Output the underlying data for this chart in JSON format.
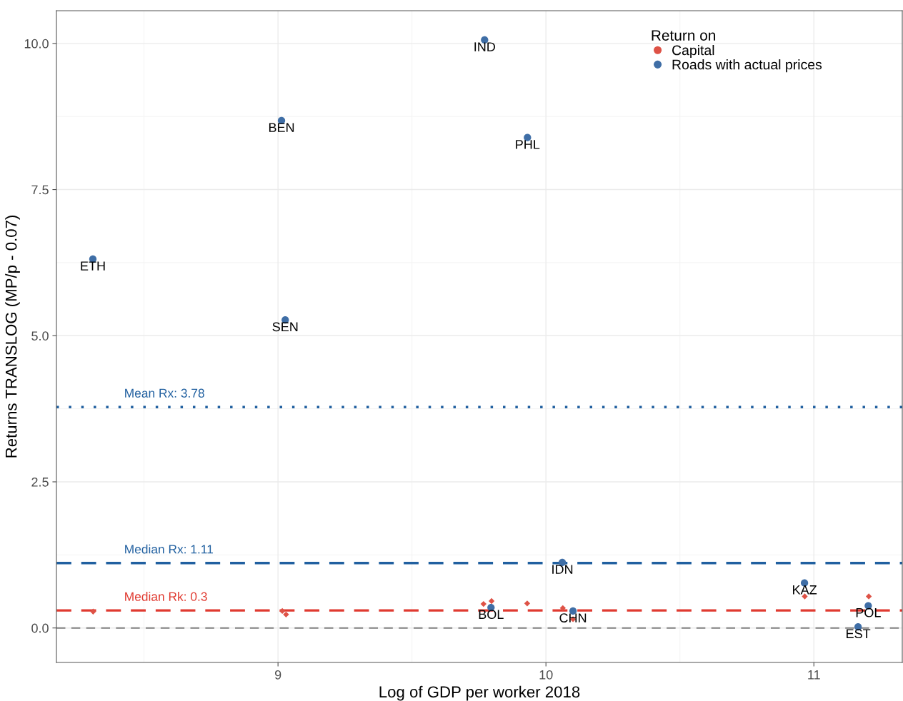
{
  "chart_data": {
    "type": "scatter",
    "xlabel": "Log of GDP per worker 2018",
    "ylabel": "Returns TRANSLOG (MP/p - 0.07)",
    "legend_title": "Return on",
    "legend": "top right",
    "grid": true,
    "xlim": [
      8.173,
      11.33
    ],
    "ylim": [
      -0.59,
      10.56
    ],
    "xticks": [
      9,
      10,
      11
    ],
    "yticks": [
      {
        "value": 0,
        "label": "0.0"
      },
      2.5,
      {
        "value": 5,
        "label": "5.0"
      },
      7.5,
      {
        "value": 10,
        "label": "10.0"
      }
    ],
    "series": [
      {
        "name": "Capital",
        "color": "#de5246",
        "marker": "diamond",
        "x": [
          8.31,
          9.016,
          9.03,
          9.767,
          9.797,
          9.93,
          10.063,
          10.101,
          10.966,
          11.205
        ],
        "values": [
          0.28,
          0.29,
          0.23,
          0.41,
          0.46,
          0.42,
          0.34,
          0.15,
          0.54,
          0.54
        ]
      },
      {
        "name": "Roads with actual prices",
        "color": "#3f6ea6",
        "marker": "circle",
        "x": [
          8.309,
          9.013,
          9.027,
          9.771,
          9.931,
          10.061,
          9.795,
          10.101,
          10.965,
          11.203,
          11.165
        ],
        "values": [
          6.31,
          8.68,
          5.27,
          10.06,
          8.39,
          1.12,
          0.35,
          0.29,
          0.77,
          0.38,
          0.02
        ]
      }
    ],
    "ref_lines": [
      {
        "axis": "y",
        "value": 3.78,
        "label": "Mean Rx: 3.78",
        "color": "#2160a0",
        "line_style": "dotted"
      },
      {
        "axis": "y",
        "value": 1.11,
        "label": "Median Rx: 1.11",
        "color": "#2160a0",
        "line_style": "dashed"
      },
      {
        "axis": "y",
        "value": 0.3,
        "label": "Median Rk: 0.3",
        "color": "#e03a30",
        "line_style": "dashed"
      },
      {
        "axis": "y",
        "value": 0,
        "label": null,
        "color": "#808080",
        "line_style": "dashed"
      }
    ],
    "annotations": [
      {
        "text": "ETH",
        "x": 8.309,
        "y": 6.31
      },
      {
        "text": "BEN",
        "x": 9.013,
        "y": 8.68
      },
      {
        "text": "SEN",
        "x": 9.027,
        "y": 5.27
      },
      {
        "text": "IND",
        "x": 9.771,
        "y": 10.06
      },
      {
        "text": "PHL",
        "x": 9.931,
        "y": 8.39
      },
      {
        "text": "IDN",
        "x": 10.061,
        "y": 1.12
      },
      {
        "text": "BOL",
        "x": 9.795,
        "y": 0.35
      },
      {
        "text": "CHN",
        "x": 10.101,
        "y": 0.29
      },
      {
        "text": "KAZ",
        "x": 10.965,
        "y": 0.77
      },
      {
        "text": "POL",
        "x": 11.203,
        "y": 0.38
      },
      {
        "text": "EST",
        "x": 11.165,
        "y": 0.02
      }
    ]
  }
}
